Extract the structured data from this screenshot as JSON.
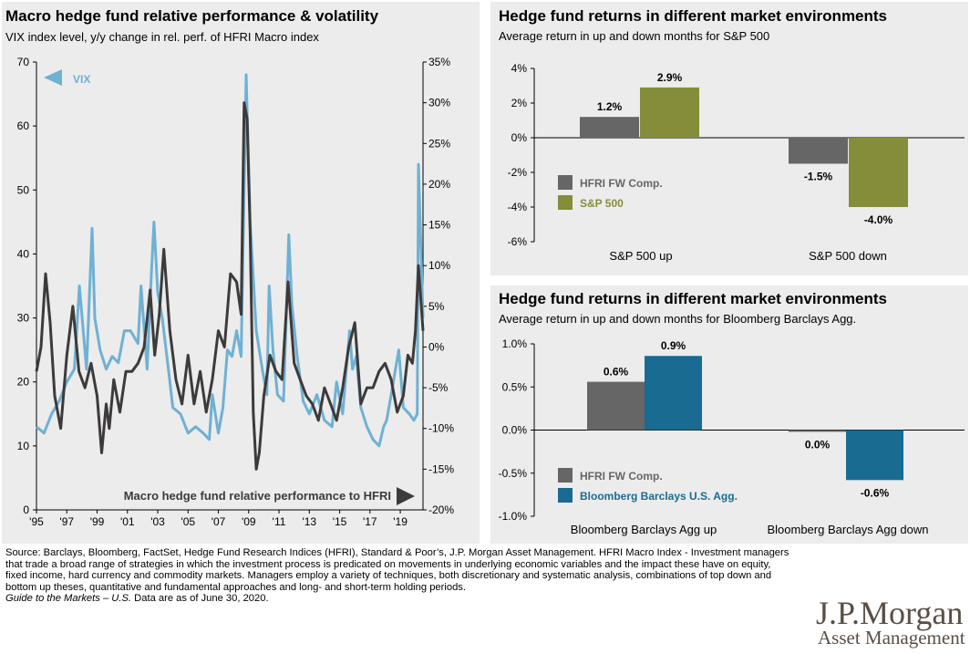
{
  "colors": {
    "vix": "#6fb1d3",
    "macro": "#3d3a3a",
    "hfri": "#666666",
    "sp500": "#868d3a",
    "agg": "#1a6b91",
    "panel_bg": "#ececec"
  },
  "left": {
    "title": "Macro hedge fund relative performance & volatility",
    "subtitle": "VIX index level, y/y change in rel. perf. of HFRI Macro index",
    "vix_label": "VIX",
    "macro_label": "Macro hedge fund relative performance to HFRI"
  },
  "top_right": {
    "title": "Hedge fund returns in different market environments",
    "subtitle": "Average return in up and down months for S&P 500"
  },
  "bottom_right": {
    "title": "Hedge fund returns in different market environments",
    "subtitle": "Average return in up and down months for Bloomberg Barclays Agg."
  },
  "footnote": {
    "text": "Source: Barclays, Bloomberg, FactSet, Hedge Fund Research Indices (HFRI), Standard & Poor’s, J.P. Morgan Asset Management. HFRI Macro Index - Investment managers that trade a broad range of strategies in which the investment process is predicated on movements in underlying economic variables and the impact these have on equity, fixed income, hard currency and commodity markets. Managers employ a variety of techniques, both discretionary and systematic analysis, combinations of top down and bottom up theses, quantitative and fundamental approaches and long- and short-term holding periods.",
    "guide": "Guide to the Markets – U.S.",
    "asof": " Data are as of June 30, 2020."
  },
  "logo": {
    "line1": "J.P.Morgan",
    "line2": "Asset Management"
  },
  "chart_data": [
    {
      "type": "line",
      "title": "Macro hedge fund relative performance & volatility",
      "x_tick_labels": [
        "'95",
        "'97",
        "'99",
        "'01",
        "'03",
        "'05",
        "'07",
        "'09",
        "'11",
        "'13",
        "'15",
        "'17",
        "'19"
      ],
      "y_left_ticks": [
        "0",
        "10",
        "20",
        "30",
        "40",
        "50",
        "60",
        "70"
      ],
      "y_left_range": [
        0,
        70
      ],
      "y_right_ticks": [
        "-20%",
        "-15%",
        "-10%",
        "-5%",
        "0%",
        "5%",
        "10%",
        "15%",
        "20%",
        "25%",
        "30%",
        "35%"
      ],
      "y_right_range": [
        -20,
        35
      ],
      "grid": false,
      "series": [
        {
          "name": "VIX",
          "axis": "left",
          "x": [
            1995.0,
            1995.5,
            1996.0,
            1996.5,
            1997.0,
            1997.5,
            1997.83,
            1998.3,
            1998.67,
            1998.85,
            1999.2,
            1999.6,
            2000.0,
            2000.4,
            2000.8,
            2001.2,
            2001.7,
            2001.9,
            2002.3,
            2002.6,
            2002.75,
            2003.0,
            2003.3,
            2003.7,
            2004.0,
            2004.5,
            2005.0,
            2005.5,
            2006.0,
            2006.4,
            2006.6,
            2007.0,
            2007.3,
            2007.6,
            2007.9,
            2008.2,
            2008.5,
            2008.83,
            2009.1,
            2009.5,
            2009.9,
            2010.2,
            2010.35,
            2010.6,
            2010.9,
            2011.3,
            2011.65,
            2011.85,
            2012.2,
            2012.6,
            2013.0,
            2013.5,
            2014.0,
            2014.5,
            2014.8,
            2015.2,
            2015.65,
            2015.85,
            2016.1,
            2016.4,
            2016.8,
            2017.2,
            2017.6,
            2017.9,
            2018.1,
            2018.4,
            2018.9,
            2019.2,
            2019.6,
            2019.9,
            2020.12,
            2020.2,
            2020.5
          ],
          "y": [
            13,
            12,
            15,
            17,
            20,
            22,
            35,
            22,
            44,
            30,
            25,
            22,
            24,
            23,
            28,
            28,
            26,
            35,
            22,
            38,
            45,
            34,
            30,
            22,
            16,
            15,
            12,
            13,
            12,
            11,
            18,
            12,
            16,
            25,
            24,
            28,
            24,
            68,
            45,
            28,
            22,
            18,
            35,
            25,
            18,
            17,
            43,
            32,
            24,
            17,
            15,
            18,
            14,
            13,
            20,
            15,
            28,
            22,
            24,
            16,
            13,
            11,
            10,
            13,
            14,
            18,
            25,
            16,
            15,
            14,
            15,
            54,
            30
          ]
        },
        {
          "name": "Macro hedge fund relative performance to HFRI",
          "axis": "right",
          "x": [
            1995.0,
            1995.3,
            1995.6,
            1995.9,
            1996.2,
            1996.6,
            1997.0,
            1997.4,
            1997.8,
            1998.2,
            1998.6,
            1999.0,
            1999.3,
            1999.6,
            1999.8,
            2000.1,
            2000.5,
            2000.9,
            2001.3,
            2001.7,
            2002.1,
            2002.5,
            2002.8,
            2003.1,
            2003.4,
            2003.8,
            2004.2,
            2004.6,
            2005.0,
            2005.4,
            2005.8,
            2006.2,
            2006.6,
            2007.0,
            2007.4,
            2007.8,
            2008.2,
            2008.5,
            2008.7,
            2008.9,
            2009.1,
            2009.3,
            2009.5,
            2009.7,
            2010.0,
            2010.4,
            2010.8,
            2011.2,
            2011.6,
            2012.0,
            2012.4,
            2012.8,
            2013.2,
            2013.6,
            2014.0,
            2014.4,
            2014.8,
            2015.2,
            2015.6,
            2016.0,
            2016.4,
            2016.8,
            2017.2,
            2017.6,
            2018.0,
            2018.4,
            2018.8,
            2019.2,
            2019.5,
            2019.8,
            2020.0,
            2020.2,
            2020.5
          ],
          "y": [
            -3,
            0,
            9,
            3,
            -6,
            -10,
            -1,
            5,
            -3,
            -5,
            -2,
            -6,
            -13,
            -7,
            -10,
            -4,
            -8,
            -3,
            -3,
            -2,
            0,
            7,
            -1,
            4,
            12,
            2,
            -4,
            -7,
            -1,
            -7,
            -3,
            -8,
            -4,
            2,
            0,
            9,
            8,
            4,
            30,
            28,
            14,
            -8,
            -15,
            -13,
            -6,
            -1,
            -3,
            -4,
            8,
            -2,
            -4,
            -6,
            -7,
            -9,
            -5,
            -7,
            -9,
            -5,
            0,
            3,
            -7,
            -5,
            -5,
            -3,
            -2,
            -4,
            -8,
            -6,
            -1,
            -2,
            2,
            10,
            2
          ]
        }
      ]
    },
    {
      "type": "bar",
      "title": "Hedge fund returns in different market environments",
      "subtitle": "Average return in up and down months for S&P 500",
      "categories": [
        "S&P 500 up",
        "S&P 500 down"
      ],
      "series": [
        {
          "name": "HFRI FW Comp.",
          "values": [
            1.2,
            -1.5
          ],
          "labels": [
            "1.2%",
            "-1.5%"
          ]
        },
        {
          "name": "S&P 500",
          "values": [
            2.9,
            -4.0
          ],
          "labels": [
            "2.9%",
            "-4.0%"
          ]
        }
      ],
      "y_ticks": [
        "4%",
        "2%",
        "0%",
        "-2%",
        "-4%",
        "-6%"
      ],
      "ylim": [
        -6,
        4
      ],
      "legend": "left"
    },
    {
      "type": "bar",
      "title": "Hedge fund returns in different market environments",
      "subtitle": "Average return in up and down months for Bloomberg Barclays Agg.",
      "categories": [
        "Bloomberg Barclays Agg up",
        "Bloomberg Barclays Agg down"
      ],
      "series": [
        {
          "name": "HFRI FW Comp.",
          "values": [
            0.56,
            -0.02
          ],
          "labels": [
            "0.6%",
            "0.0%"
          ]
        },
        {
          "name": "Bloomberg Barclays U.S. Agg.",
          "values": [
            0.86,
            -0.58
          ],
          "labels": [
            "0.9%",
            "-0.6%"
          ]
        }
      ],
      "y_ticks": [
        "1.0%",
        "0.5%",
        "0.0%",
        "-0.5%",
        "-1.0%"
      ],
      "ylim": [
        -1.0,
        1.0
      ],
      "legend": "left"
    }
  ]
}
